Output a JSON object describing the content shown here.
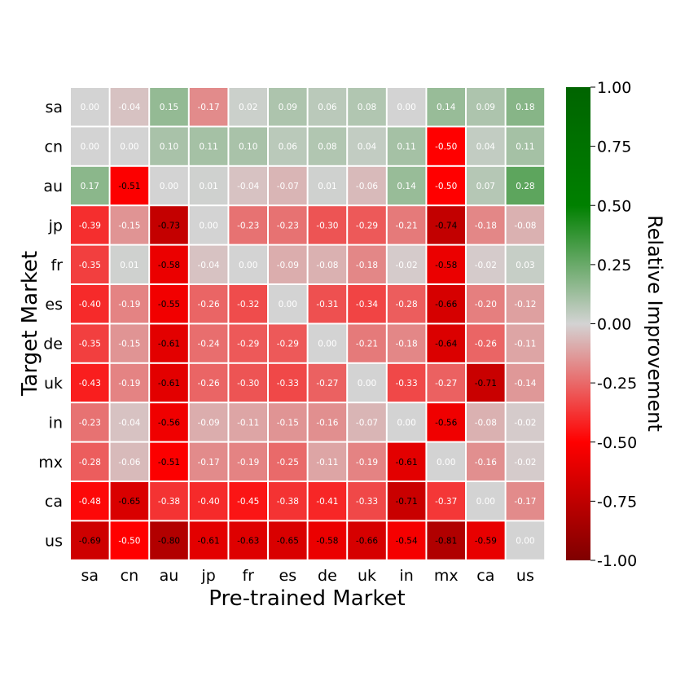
{
  "chart_data": {
    "type": "heatmap",
    "xlabel": "Pre-trained Market",
    "ylabel": "Target Market",
    "colorbar_label": "Relative Improvement",
    "x_categories": [
      "sa",
      "cn",
      "au",
      "jp",
      "fr",
      "es",
      "de",
      "uk",
      "in",
      "mx",
      "ca",
      "us"
    ],
    "y_categories": [
      "sa",
      "cn",
      "au",
      "jp",
      "fr",
      "es",
      "de",
      "uk",
      "in",
      "mx",
      "ca",
      "us"
    ],
    "value_range": [
      -1.0,
      1.0
    ],
    "colorbar_ticks": [
      "1.00",
      "0.75",
      "0.50",
      "0.25",
      "0.00",
      "-0.25",
      "-0.50",
      "-0.75",
      "-1.00"
    ],
    "colormap": [
      {
        "stop": 0.0,
        "color": "#7f0000"
      },
      {
        "stop": 0.25,
        "color": "#ff0000"
      },
      {
        "stop": 0.5,
        "color": "#d3d3d3"
      },
      {
        "stop": 0.75,
        "color": "#008000"
      },
      {
        "stop": 1.0,
        "color": "#006400"
      }
    ],
    "values": [
      [
        0.0,
        -0.04,
        0.15,
        -0.17,
        0.02,
        0.09,
        0.06,
        0.08,
        0.0,
        0.14,
        0.09,
        0.18
      ],
      [
        0.0,
        0.0,
        0.1,
        0.11,
        0.1,
        0.06,
        0.08,
        0.04,
        0.11,
        -0.5,
        0.04,
        0.11
      ],
      [
        0.17,
        -0.51,
        0.0,
        0.01,
        -0.04,
        -0.07,
        0.01,
        -0.06,
        0.14,
        -0.5,
        0.07,
        0.28
      ],
      [
        -0.39,
        -0.15,
        -0.73,
        0.0,
        -0.23,
        -0.23,
        -0.3,
        -0.29,
        -0.21,
        -0.74,
        -0.18,
        -0.08
      ],
      [
        -0.35,
        0.01,
        -0.58,
        -0.04,
        0.0,
        -0.09,
        -0.08,
        -0.18,
        -0.02,
        -0.58,
        -0.02,
        0.03
      ],
      [
        -0.4,
        -0.19,
        -0.55,
        -0.26,
        -0.32,
        0.0,
        -0.31,
        -0.34,
        -0.28,
        -0.66,
        -0.2,
        -0.12
      ],
      [
        -0.35,
        -0.15,
        -0.61,
        -0.24,
        -0.29,
        -0.29,
        0.0,
        -0.21,
        -0.18,
        -0.64,
        -0.26,
        -0.11
      ],
      [
        -0.43,
        -0.19,
        -0.61,
        -0.26,
        -0.3,
        -0.33,
        -0.27,
        0.0,
        -0.33,
        -0.27,
        -0.71,
        -0.14
      ],
      [
        -0.23,
        -0.04,
        -0.56,
        -0.09,
        -0.11,
        -0.15,
        -0.16,
        -0.07,
        0.0,
        -0.56,
        -0.08,
        -0.02
      ],
      [
        -0.28,
        -0.06,
        -0.51,
        -0.17,
        -0.19,
        -0.25,
        -0.11,
        -0.19,
        -0.61,
        0.0,
        -0.16,
        -0.02
      ],
      [
        -0.48,
        -0.65,
        -0.38,
        -0.4,
        -0.45,
        -0.38,
        -0.41,
        -0.33,
        -0.71,
        -0.37,
        0.0,
        -0.17
      ],
      [
        -0.69,
        -0.5,
        -0.8,
        -0.61,
        -0.63,
        -0.65,
        -0.58,
        -0.66,
        -0.54,
        -0.81,
        -0.59,
        0.0
      ]
    ]
  }
}
